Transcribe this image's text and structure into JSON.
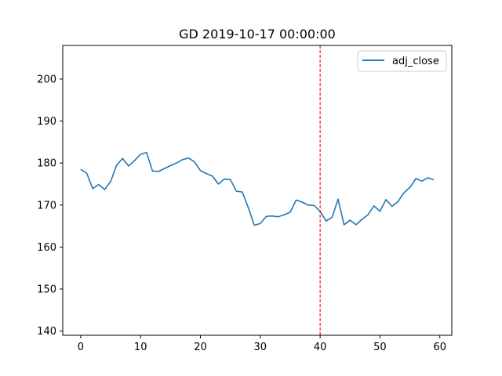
{
  "chart_data": {
    "type": "line",
    "title": "GD 2019-10-17 00:00:00",
    "xlabel": "",
    "ylabel": "",
    "xlim": [
      -3,
      62
    ],
    "ylim": [
      139,
      208
    ],
    "xticks": [
      0,
      10,
      20,
      30,
      40,
      50,
      60
    ],
    "yticks": [
      140,
      150,
      160,
      170,
      180,
      190,
      200
    ],
    "grid": false,
    "legend": "top-right",
    "series": [
      {
        "name": "adj_close",
        "color": "#1f77b4",
        "x": [
          0,
          1,
          2,
          3,
          4,
          5,
          6,
          7,
          8,
          9,
          10,
          11,
          12,
          13,
          14,
          15,
          16,
          17,
          18,
          19,
          20,
          21,
          22,
          23,
          24,
          25,
          26,
          27,
          28,
          29,
          30,
          31,
          32,
          33,
          34,
          35,
          36,
          37,
          38,
          39,
          40,
          41,
          42,
          43,
          44,
          45,
          46,
          47,
          48,
          49,
          50,
          51,
          52,
          53,
          54,
          55,
          56,
          57,
          58,
          59
        ],
        "values": [
          178.5,
          177.6,
          173.9,
          174.9,
          173.7,
          175.6,
          179.5,
          181.1,
          179.3,
          180.6,
          182.1,
          182.5,
          178.1,
          178.0,
          178.7,
          179.4,
          180.0,
          180.8,
          181.2,
          180.3,
          178.2,
          177.5,
          176.9,
          175.0,
          176.2,
          176.1,
          173.3,
          173.1,
          169.4,
          165.2,
          165.6,
          167.3,
          167.4,
          167.2,
          167.7,
          168.3,
          171.2,
          170.7,
          170.0,
          169.9,
          168.5,
          166.2,
          167.1,
          171.4,
          165.3,
          166.4,
          165.3,
          166.6,
          167.7,
          169.8,
          168.5,
          171.3,
          169.7,
          170.8,
          172.9,
          174.2,
          176.3,
          175.7,
          176.5,
          176.0
        ]
      }
    ],
    "annotations": [
      {
        "type": "vline",
        "x": 40,
        "color": "#ff0000",
        "style": "dashed"
      }
    ]
  }
}
